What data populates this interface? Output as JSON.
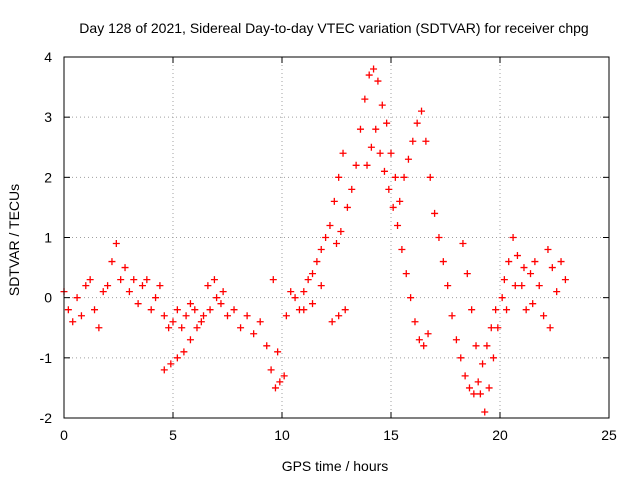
{
  "chart_data": {
    "type": "scatter",
    "title": "Day 128 of 2021, Sidereal Day-to-day VTEC variation (SDTVAR) for receiver chpg",
    "xlabel": "GPS time / hours",
    "ylabel": "SDTVAR / TECUs",
    "xlim": [
      0,
      25
    ],
    "ylim": [
      -2,
      4
    ],
    "xticks": [
      0,
      5,
      10,
      15,
      20,
      25
    ],
    "yticks": [
      -2,
      -1,
      0,
      1,
      2,
      3,
      4
    ],
    "grid": true,
    "marker": "plus",
    "color": "#ff0000",
    "series": [
      {
        "name": "SDTVAR",
        "points": [
          [
            0.0,
            0.1
          ],
          [
            0.2,
            -0.2
          ],
          [
            0.4,
            -0.4
          ],
          [
            0.6,
            0.0
          ],
          [
            0.8,
            -0.3
          ],
          [
            1.0,
            0.2
          ],
          [
            1.2,
            0.3
          ],
          [
            1.4,
            -0.2
          ],
          [
            1.6,
            -0.5
          ],
          [
            1.8,
            0.1
          ],
          [
            2.0,
            0.2
          ],
          [
            2.2,
            0.6
          ],
          [
            2.4,
            0.9
          ],
          [
            2.6,
            0.3
          ],
          [
            2.8,
            0.5
          ],
          [
            3.0,
            0.1
          ],
          [
            3.2,
            0.3
          ],
          [
            3.4,
            -0.1
          ],
          [
            3.6,
            0.2
          ],
          [
            3.8,
            0.3
          ],
          [
            4.0,
            -0.2
          ],
          [
            4.2,
            0.0
          ],
          [
            4.4,
            0.2
          ],
          [
            4.6,
            -0.3
          ],
          [
            4.8,
            -0.5
          ],
          [
            5.0,
            -0.4
          ],
          [
            5.2,
            -0.2
          ],
          [
            5.4,
            -0.5
          ],
          [
            5.6,
            -0.3
          ],
          [
            5.8,
            -0.1
          ],
          [
            4.6,
            -1.2
          ],
          [
            4.9,
            -1.1
          ],
          [
            5.2,
            -1.0
          ],
          [
            5.5,
            -0.9
          ],
          [
            5.8,
            -0.7
          ],
          [
            6.1,
            -0.5
          ],
          [
            6.4,
            -0.3
          ],
          [
            6.7,
            -0.2
          ],
          [
            7.0,
            0.0
          ],
          [
            7.3,
            0.1
          ],
          [
            6.0,
            -0.2
          ],
          [
            6.3,
            -0.4
          ],
          [
            6.6,
            0.2
          ],
          [
            6.9,
            0.3
          ],
          [
            7.2,
            -0.1
          ],
          [
            7.5,
            -0.3
          ],
          [
            7.8,
            -0.2
          ],
          [
            8.1,
            -0.5
          ],
          [
            8.4,
            -0.3
          ],
          [
            8.7,
            -0.6
          ],
          [
            9.0,
            -0.4
          ],
          [
            9.3,
            -0.8
          ],
          [
            9.5,
            -1.2
          ],
          [
            9.7,
            -1.5
          ],
          [
            9.9,
            -1.4
          ],
          [
            10.1,
            -1.3
          ],
          [
            9.6,
            0.3
          ],
          [
            9.8,
            -0.9
          ],
          [
            10.2,
            -0.3
          ],
          [
            10.4,
            0.1
          ],
          [
            10.6,
            0.0
          ],
          [
            10.8,
            -0.2
          ],
          [
            11.0,
            0.1
          ],
          [
            11.2,
            0.3
          ],
          [
            11.4,
            0.4
          ],
          [
            11.6,
            0.6
          ],
          [
            11.8,
            0.8
          ],
          [
            12.0,
            1.0
          ],
          [
            12.2,
            1.2
          ],
          [
            12.4,
            1.6
          ],
          [
            12.6,
            2.0
          ],
          [
            12.8,
            2.4
          ],
          [
            12.5,
            0.9
          ],
          [
            12.7,
            1.1
          ],
          [
            12.3,
            -0.4
          ],
          [
            12.6,
            -0.3
          ],
          [
            12.9,
            -0.2
          ],
          [
            11.0,
            -0.2
          ],
          [
            11.4,
            -0.1
          ],
          [
            11.8,
            0.2
          ],
          [
            13.0,
            1.5
          ],
          [
            13.2,
            1.8
          ],
          [
            13.4,
            2.2
          ],
          [
            13.6,
            2.8
          ],
          [
            13.8,
            3.3
          ],
          [
            14.0,
            3.7
          ],
          [
            14.2,
            3.8
          ],
          [
            14.4,
            3.6
          ],
          [
            14.6,
            3.2
          ],
          [
            14.8,
            2.9
          ],
          [
            13.9,
            2.2
          ],
          [
            14.1,
            2.5
          ],
          [
            14.3,
            2.8
          ],
          [
            14.5,
            2.4
          ],
          [
            14.7,
            2.1
          ],
          [
            14.9,
            1.8
          ],
          [
            15.1,
            1.5
          ],
          [
            15.3,
            1.2
          ],
          [
            15.5,
            0.8
          ],
          [
            15.7,
            0.4
          ],
          [
            15.0,
            2.4
          ],
          [
            15.2,
            2.0
          ],
          [
            15.4,
            1.6
          ],
          [
            15.6,
            2.0
          ],
          [
            15.8,
            2.3
          ],
          [
            16.0,
            2.6
          ],
          [
            16.2,
            2.9
          ],
          [
            16.4,
            3.1
          ],
          [
            16.6,
            2.6
          ],
          [
            16.8,
            2.0
          ],
          [
            15.9,
            0.0
          ],
          [
            16.1,
            -0.4
          ],
          [
            16.3,
            -0.7
          ],
          [
            16.5,
            -0.8
          ],
          [
            16.7,
            -0.6
          ],
          [
            17.0,
            1.4
          ],
          [
            17.2,
            1.0
          ],
          [
            17.4,
            0.6
          ],
          [
            17.6,
            0.2
          ],
          [
            17.8,
            -0.3
          ],
          [
            18.0,
            -0.7
          ],
          [
            18.2,
            -1.0
          ],
          [
            18.4,
            -1.3
          ],
          [
            18.6,
            -1.5
          ],
          [
            18.8,
            -1.6
          ],
          [
            19.0,
            -1.4
          ],
          [
            19.2,
            -1.1
          ],
          [
            19.4,
            -0.8
          ],
          [
            19.6,
            -0.5
          ],
          [
            19.8,
            -0.2
          ],
          [
            18.3,
            0.9
          ],
          [
            18.5,
            0.4
          ],
          [
            18.7,
            -0.2
          ],
          [
            18.9,
            -0.8
          ],
          [
            19.1,
            -1.6
          ],
          [
            19.3,
            -1.9
          ],
          [
            19.5,
            -1.5
          ],
          [
            19.7,
            -1.0
          ],
          [
            19.9,
            -0.5
          ],
          [
            20.1,
            0.0
          ],
          [
            20.2,
            0.3
          ],
          [
            20.4,
            0.6
          ],
          [
            20.6,
            1.0
          ],
          [
            20.8,
            0.7
          ],
          [
            21.0,
            0.2
          ],
          [
            21.2,
            -0.2
          ],
          [
            21.4,
            0.4
          ],
          [
            21.6,
            0.6
          ],
          [
            21.8,
            0.2
          ],
          [
            22.0,
            -0.3
          ],
          [
            22.2,
            0.8
          ],
          [
            22.4,
            0.5
          ],
          [
            22.6,
            0.1
          ],
          [
            22.8,
            0.6
          ],
          [
            23.0,
            0.3
          ],
          [
            20.3,
            -0.2
          ],
          [
            20.7,
            0.2
          ],
          [
            21.1,
            0.5
          ],
          [
            21.5,
            -0.1
          ],
          [
            22.3,
            -0.5
          ]
        ]
      }
    ]
  }
}
